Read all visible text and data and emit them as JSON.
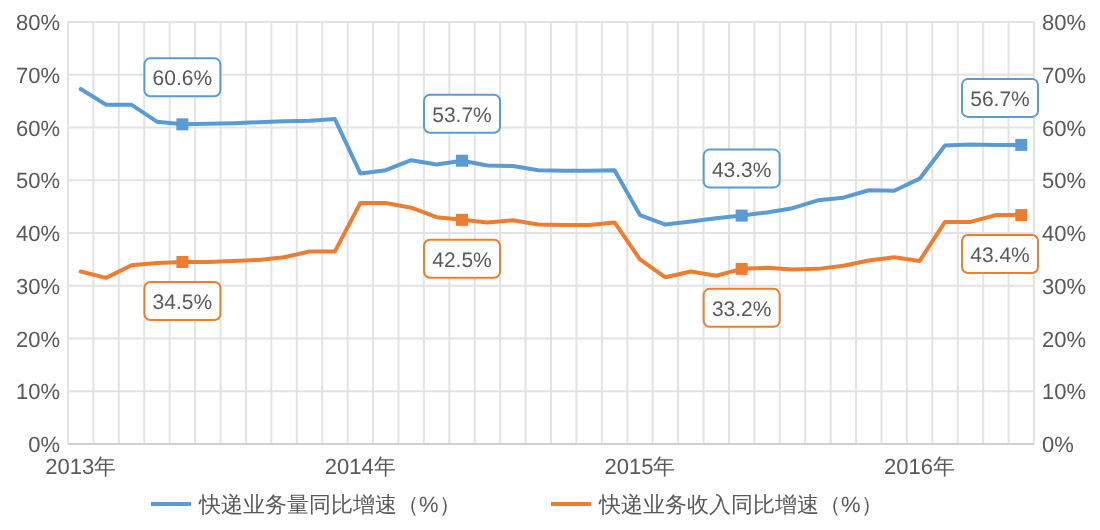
{
  "chart_data": {
    "type": "line",
    "categories": [
      "2013年",
      null,
      null,
      null,
      null,
      null,
      null,
      null,
      null,
      null,
      null,
      "2014年",
      null,
      null,
      null,
      null,
      null,
      null,
      null,
      null,
      null,
      null,
      "2015年",
      null,
      null,
      null,
      null,
      null,
      null,
      null,
      null,
      null,
      null,
      "2016年",
      null,
      null,
      null,
      null
    ],
    "series": [
      {
        "name": "快递业务量同比增速（%）",
        "color": "#5b9bd5",
        "values": [
          67.3,
          64.3,
          64.3,
          61.1,
          60.6,
          60.7,
          60.8,
          61.0,
          61.2,
          61.3,
          61.6,
          51.3,
          51.9,
          53.8,
          53.0,
          53.7,
          52.8,
          52.7,
          51.9,
          51.8,
          51.8,
          51.9,
          43.4,
          41.6,
          42.2,
          42.8,
          43.3,
          43.9,
          44.7,
          46.2,
          46.7,
          48.1,
          48.0,
          50.3,
          56.6,
          56.8,
          56.7,
          56.7
        ],
        "value_labels": [
          null,
          null,
          null,
          null,
          "60.6%",
          null,
          null,
          null,
          null,
          null,
          null,
          null,
          null,
          null,
          null,
          "53.7%",
          null,
          null,
          null,
          null,
          null,
          null,
          null,
          null,
          null,
          null,
          "43.3%",
          null,
          null,
          null,
          null,
          null,
          null,
          null,
          null,
          null,
          null,
          "56.7%"
        ]
      },
      {
        "name": "快递业务收入同比增速（%）",
        "color": "#ed7d31",
        "values": [
          32.7,
          31.5,
          33.9,
          34.3,
          34.5,
          34.5,
          34.7,
          34.9,
          35.4,
          36.5,
          36.5,
          45.7,
          45.7,
          44.8,
          43.0,
          42.5,
          42.0,
          42.4,
          41.6,
          41.5,
          41.5,
          42.0,
          35.0,
          31.6,
          32.7,
          31.9,
          33.2,
          33.4,
          33.1,
          33.2,
          33.8,
          34.8,
          35.4,
          34.7,
          42.1,
          42.1,
          43.4,
          43.4
        ],
        "value_labels": [
          null,
          null,
          null,
          null,
          "34.5%",
          null,
          null,
          null,
          null,
          null,
          null,
          null,
          null,
          null,
          null,
          "42.5%",
          null,
          null,
          null,
          null,
          null,
          null,
          null,
          null,
          null,
          null,
          "33.2%",
          null,
          null,
          null,
          null,
          null,
          null,
          null,
          null,
          null,
          null,
          "43.4%"
        ]
      }
    ],
    "ylim": [
      0,
      80
    ],
    "yticks": [
      {
        "value": 0,
        "label": "0%"
      },
      {
        "value": 10,
        "label": "10%"
      },
      {
        "value": 20,
        "label": "20%"
      },
      {
        "value": 30,
        "label": "30%"
      },
      {
        "value": 40,
        "label": "40%"
      },
      {
        "value": 50,
        "label": "50%"
      },
      {
        "value": 60,
        "label": "60%"
      },
      {
        "value": 70,
        "label": "70%"
      },
      {
        "value": 80,
        "label": "80%"
      }
    ],
    "y2lim": [
      0,
      80
    ],
    "y2ticks": [
      {
        "value": 0,
        "label": "0%"
      },
      {
        "value": 10,
        "label": "10%"
      },
      {
        "value": 20,
        "label": "20%"
      },
      {
        "value": 30,
        "label": "30%"
      },
      {
        "value": 40,
        "label": "40%"
      },
      {
        "value": 50,
        "label": "50%"
      },
      {
        "value": 60,
        "label": "60%"
      },
      {
        "value": 70,
        "label": "70%"
      },
      {
        "value": 80,
        "label": "80%"
      }
    ],
    "grid": true,
    "legend": "bottom",
    "line_style": "solid"
  }
}
